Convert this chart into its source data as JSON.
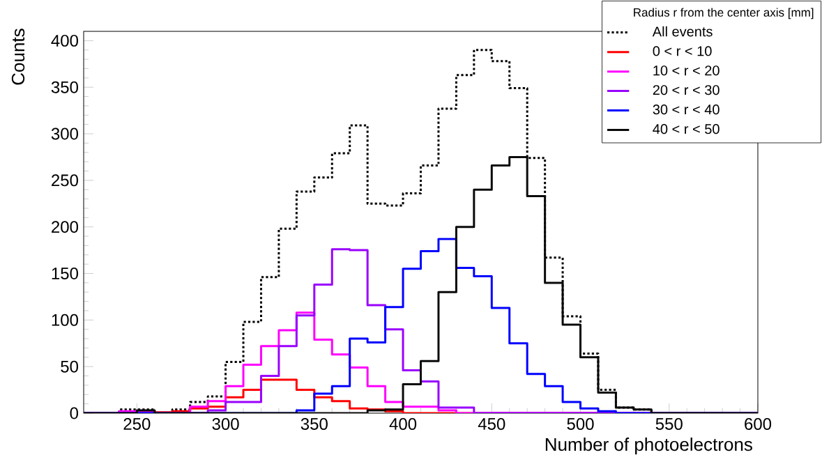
{
  "chart_data": {
    "type": "histogram",
    "xlabel": "Number of photoelectrons",
    "ylabel": "Counts",
    "legend_title": "Radius r from the center axis [mm]",
    "legend": "top right",
    "bins": [
      220,
      230,
      240,
      250,
      260,
      270,
      280,
      290,
      300,
      310,
      320,
      330,
      340,
      350,
      360,
      370,
      380,
      390,
      400,
      410,
      420,
      430,
      440,
      450,
      460,
      470,
      480,
      490,
      500,
      510,
      520,
      530,
      540,
      550,
      560,
      570,
      580,
      590,
      600
    ],
    "xlim": [
      220,
      600
    ],
    "xticks": [
      250,
      300,
      350,
      400,
      450,
      500,
      550,
      600
    ],
    "ylim": [
      0,
      410
    ],
    "yticks": [
      0,
      50,
      100,
      150,
      200,
      250,
      300,
      350,
      400
    ],
    "series": [
      {
        "name": "All events",
        "color": "#000000",
        "line_style": "dotted",
        "values": [
          0,
          0,
          4,
          4,
          0,
          4,
          12,
          18,
          55,
          98,
          146,
          198,
          238,
          253,
          279,
          309,
          225,
          223,
          236,
          266,
          327,
          363,
          390,
          378,
          349,
          274,
          167,
          104,
          64,
          25,
          6,
          4,
          0,
          0,
          0,
          0,
          0,
          0
        ]
      },
      {
        "name": "0 < r < 10",
        "color": "#ff0000",
        "line_style": "solid",
        "values": [
          0,
          0,
          1,
          1,
          1,
          2,
          5,
          7,
          17,
          25,
          36,
          36,
          25,
          17,
          13,
          5,
          4,
          2,
          0,
          0,
          0,
          0,
          0,
          0,
          0,
          0,
          0,
          0,
          0,
          0,
          0,
          0,
          0,
          0,
          0,
          0,
          0,
          0
        ]
      },
      {
        "name": "10 < r < 20",
        "color": "#ff00ff",
        "line_style": "solid",
        "values": [
          0,
          0,
          2,
          2,
          0,
          0,
          7,
          13,
          29,
          52,
          72,
          89,
          108,
          79,
          63,
          49,
          29,
          12,
          7,
          7,
          3,
          0,
          0,
          0,
          0,
          0,
          0,
          0,
          0,
          0,
          0,
          0,
          0,
          0,
          0,
          0,
          0,
          0
        ]
      },
      {
        "name": "20 < r < 30",
        "color": "#9900ff",
        "line_style": "solid",
        "values": [
          0,
          0,
          0,
          0,
          0,
          0,
          0,
          3,
          12,
          12,
          40,
          72,
          105,
          138,
          176,
          175,
          116,
          90,
          46,
          34,
          6,
          6,
          0,
          0,
          0,
          0,
          0,
          0,
          0,
          0,
          0,
          0,
          0,
          0,
          0,
          0,
          0,
          0
        ]
      },
      {
        "name": "30 < r < 40",
        "color": "#0000ff",
        "line_style": "solid",
        "values": [
          0,
          0,
          0,
          0,
          0,
          0,
          0,
          0,
          0,
          0,
          0,
          0,
          3,
          21,
          29,
          80,
          76,
          114,
          155,
          174,
          187,
          156,
          147,
          113,
          75,
          42,
          29,
          12,
          5,
          2,
          0,
          0,
          0,
          0,
          0,
          0,
          0,
          0
        ]
      },
      {
        "name": "40 < r < 50",
        "color": "#0a0a0a",
        "line_style": "solid",
        "values": [
          0,
          0,
          0,
          3,
          0,
          0,
          0,
          0,
          0,
          0,
          0,
          0,
          0,
          0,
          0,
          0,
          3,
          4,
          31,
          56,
          130,
          200,
          240,
          266,
          275,
          233,
          140,
          95,
          60,
          22,
          6,
          4,
          0,
          0,
          0,
          0,
          0,
          0
        ]
      }
    ]
  }
}
